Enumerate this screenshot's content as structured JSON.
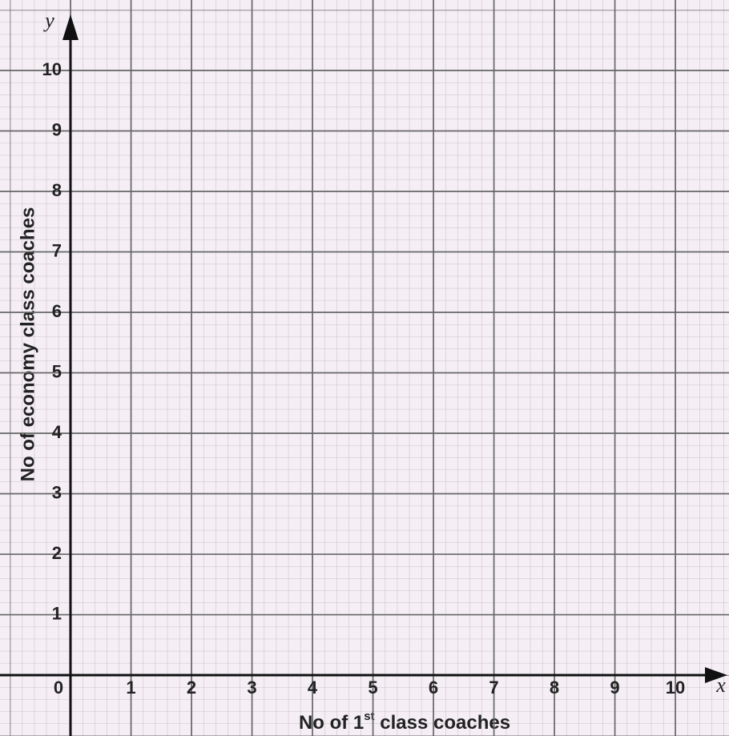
{
  "chart_data": {
    "type": "scatter",
    "xlabel_parts": [
      "No of 1",
      "st",
      " class coaches"
    ],
    "ylabel": "No of economy class coaches",
    "x_axis_name": "x",
    "y_axis_name": "y",
    "xlim": [
      0,
      10.9
    ],
    "ylim": [
      0,
      10.9
    ],
    "xticks": [
      0,
      1,
      2,
      3,
      4,
      5,
      6,
      7,
      8,
      9,
      10
    ],
    "yticks": [
      1,
      2,
      3,
      4,
      5,
      6,
      7,
      8,
      9,
      10
    ],
    "grid": true
  }
}
